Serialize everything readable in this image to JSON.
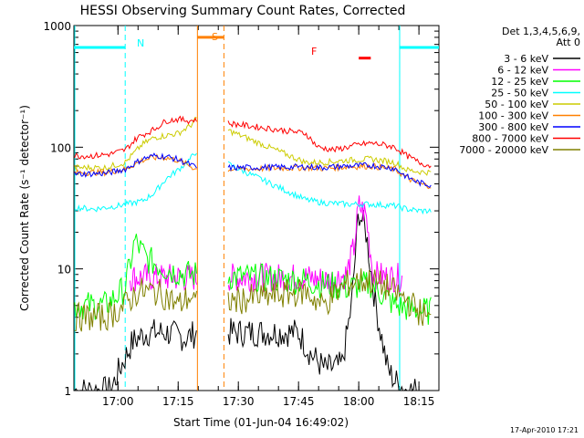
{
  "chart_data": {
    "type": "line",
    "title": "HESSI Observing Summary Count Rates, Corrected",
    "xlabel": "Start Time (01-Jun-04 16:49:02)",
    "ylabel": "Corrected Count Rate (s⁻¹ detector⁻¹)",
    "yscale": "log",
    "ylim": [
      1,
      1000
    ],
    "xlim_minutes": [
      16.817,
      18.333
    ],
    "y_ticks": [
      "1",
      "10",
      "100",
      "1000"
    ],
    "x_ticks": [
      "17:00",
      "17:15",
      "17:30",
      "17:45",
      "18:00",
      "18:15"
    ],
    "x_tick_values": [
      17.0,
      17.25,
      17.5,
      17.75,
      18.0,
      18.25
    ],
    "legend_title": [
      "Det 1,3,4,5,6,9,",
      "Att 0"
    ],
    "legend_position": "right",
    "grid": false,
    "footer": "17-Apr-2010 17:21",
    "series": [
      {
        "name": "3 - 6 keV",
        "color": "#000000",
        "x": [
          16.82,
          16.97,
          17.0,
          17.06,
          17.12,
          17.2,
          17.28,
          17.33,
          17.75,
          17.8,
          17.86,
          17.93,
          17.97,
          18.0,
          18.03,
          18.07,
          18.12,
          18.15,
          18.2,
          18.25
        ],
        "y": [
          1,
          1,
          1.4,
          2.5,
          3,
          3,
          2.7,
          3,
          3,
          2,
          1.5,
          1.6,
          5,
          30,
          20,
          5,
          1.5,
          1.2,
          1,
          1
        ]
      },
      {
        "name": "6 - 12 keV",
        "color": "#ff00ff",
        "x": [
          17.05,
          17.15,
          17.25,
          17.33,
          17.78,
          17.88,
          17.95,
          17.98,
          18.0,
          18.03,
          18.06,
          18.12,
          18.18
        ],
        "y": [
          8.5,
          8.5,
          8.5,
          8.5,
          8.5,
          8,
          9,
          15,
          33,
          28,
          9,
          8.5,
          8.5
        ]
      },
      {
        "name": "12 - 25 keV",
        "color": "#00ff00",
        "x": [
          16.82,
          16.95,
          17.03,
          17.07,
          17.12,
          17.2,
          17.28,
          17.33,
          17.78,
          17.85,
          17.95,
          18.05,
          18.15,
          18.25,
          18.3
        ],
        "y": [
          5,
          5,
          7,
          17,
          12,
          10,
          9,
          9,
          8,
          7.5,
          7,
          7.5,
          5,
          4.5,
          4.5
        ]
      },
      {
        "name": "25 - 50 keV",
        "color": "#00ffff",
        "x": [
          16.82,
          16.9,
          17.0,
          17.1,
          17.15,
          17.2,
          17.25,
          17.3,
          17.33,
          17.78,
          17.85,
          17.95,
          18.05,
          18.15,
          18.2,
          18.25,
          18.3
        ],
        "y": [
          32,
          31,
          33,
          36,
          42,
          55,
          65,
          80,
          95,
          37,
          35,
          34,
          34,
          33,
          31,
          30,
          30
        ]
      },
      {
        "name": "50 - 100 keV",
        "color": "#cccc00",
        "x": [
          16.82,
          16.95,
          17.03,
          17.1,
          17.15,
          17.2,
          17.25,
          17.3,
          17.33,
          17.78,
          17.85,
          17.95,
          18.05,
          18.15,
          18.2,
          18.25,
          18.3
        ],
        "y": [
          68,
          68,
          75,
          105,
          120,
          125,
          130,
          150,
          175,
          75,
          75,
          78,
          80,
          75,
          65,
          63,
          62
        ]
      },
      {
        "name": "100 - 300 keV",
        "color": "#ff8000",
        "x": [
          16.82,
          16.95,
          17.03,
          17.1,
          17.15,
          17.2,
          17.25,
          17.3,
          17.33,
          17.78,
          17.85,
          17.95,
          18.05,
          18.15,
          18.2,
          18.25,
          18.3
        ],
        "y": [
          62,
          62,
          66,
          78,
          82,
          82,
          78,
          70,
          65,
          68,
          67,
          69,
          70,
          66,
          56,
          50,
          48
        ]
      },
      {
        "name": "300 - 800 keV",
        "color": "#0000ff",
        "x": [
          16.82,
          16.95,
          17.03,
          17.1,
          17.15,
          17.2,
          17.25,
          17.3,
          17.33,
          17.78,
          17.85,
          17.95,
          18.05,
          18.15,
          18.2,
          18.25,
          18.3
        ],
        "y": [
          60,
          61,
          66,
          80,
          85,
          84,
          79,
          72,
          67,
          69,
          68,
          70,
          71,
          67,
          57,
          51,
          49
        ]
      },
      {
        "name": "800 - 7000 keV",
        "color": "#ff0000",
        "x": [
          16.82,
          16.9,
          16.97,
          17.03,
          17.08,
          17.15,
          17.2,
          17.25,
          17.3,
          17.33,
          17.78,
          17.83,
          17.9,
          17.95,
          18.0,
          18.05,
          18.1,
          18.15,
          18.2,
          18.25,
          18.3
        ],
        "y": [
          85,
          85,
          88,
          95,
          120,
          140,
          165,
          170,
          165,
          170,
          130,
          100,
          95,
          100,
          105,
          108,
          105,
          100,
          85,
          75,
          70
        ]
      },
      {
        "name": "7000 - 20000 keV",
        "color": "#808000",
        "x": [
          16.82,
          16.95,
          17.03,
          17.08,
          17.15,
          17.2,
          17.25,
          17.3,
          17.33,
          17.78,
          17.85,
          17.95,
          18.0,
          18.05,
          18.12,
          18.2,
          18.25,
          18.3
        ],
        "y": [
          4,
          4,
          5,
          6.5,
          6.5,
          6,
          5,
          6,
          5,
          6.5,
          5,
          7.5,
          8,
          8,
          7,
          5.5,
          4.5,
          3.7
        ]
      }
    ],
    "annotations": [
      {
        "label": "N",
        "color": "#00ffff"
      },
      {
        "label": "S",
        "color": "#ff8000"
      },
      {
        "label": "F",
        "color": "#ff0000"
      }
    ],
    "night_intervals": [
      [
        16.817,
        17.03
      ],
      [
        18.17,
        18.333
      ]
    ],
    "saa_interval": [
      17.33,
      17.44
    ],
    "flare_interval": [
      18.0,
      18.05
    ]
  }
}
